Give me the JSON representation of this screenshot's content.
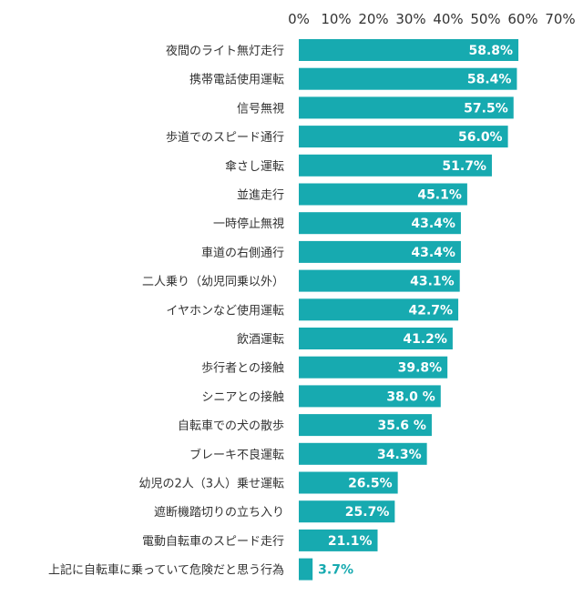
{
  "chart_data": {
    "type": "bar",
    "orientation": "horizontal",
    "title": "",
    "xlabel": "",
    "ylabel": "",
    "xlim": [
      0,
      70
    ],
    "x_ticks": [
      "0%",
      "10%",
      "20%",
      "30%",
      "40%",
      "50%",
      "60%",
      "70%"
    ],
    "x_axis_position": "top",
    "grid": false,
    "legend": "none",
    "bar_color": "#17AAB0",
    "label_inside_color": "#ffffff",
    "label_outside_color": "#17AAB0",
    "categories": [
      "夜間のライト無灯走行",
      "携帯電話使用運転",
      "信号無視",
      "歩道でのスピード通行",
      "傘さし運転",
      "並進走行",
      "一時停止無視",
      "車道の右側通行",
      "二人乗り（幼児同乗以外）",
      "イヤホンなど使用運転",
      "飲酒運転",
      "歩行者との接触",
      "シニアとの接触",
      "自転車での犬の散歩",
      "ブレーキ不良運転",
      "幼児の2人（3人）乗せ運転",
      "遮断機踏切りの立ち入り",
      "電動自転車のスピード走行",
      "上記に自転車に乗っていて危険だと思う行為"
    ],
    "values": [
      58.8,
      58.4,
      57.5,
      56.0,
      51.7,
      45.1,
      43.4,
      43.4,
      43.1,
      42.7,
      41.2,
      39.8,
      38.0,
      35.6,
      34.3,
      26.5,
      25.7,
      21.1,
      3.7
    ],
    "value_labels": [
      "58.8%",
      "58.4%",
      "57.5%",
      "56.0%",
      "51.7%",
      "45.1%",
      "43.4%",
      "43.4%",
      "43.1%",
      "42.7%",
      "41.2%",
      "39.8%",
      "38.0 %",
      "35.6 %",
      "34.3%",
      "26.5%",
      "25.7%",
      "21.1%",
      "3.7%"
    ]
  }
}
